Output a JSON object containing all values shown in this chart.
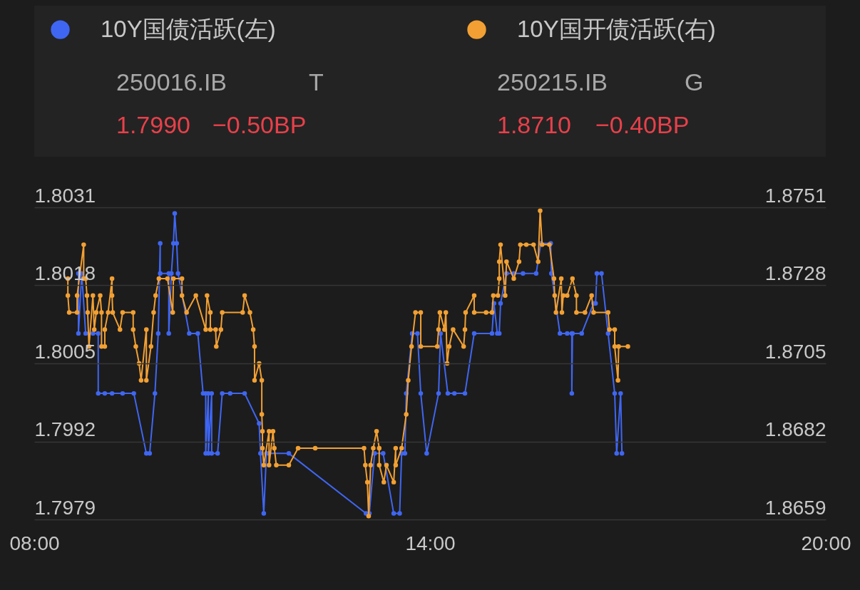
{
  "chart_data": {
    "type": "line",
    "legend": "top",
    "grid": "y",
    "marker": "circle",
    "line_style": "solid",
    "xlim": [
      8,
      20
    ],
    "xticks": [
      {
        "value": 8,
        "label": "08:00"
      },
      {
        "value": 14,
        "label": "14:00"
      },
      {
        "value": 20,
        "label": "20:00"
      }
    ],
    "ylim": [
      1.7979,
      1.8031
    ],
    "yticks": [
      1.7979,
      1.7992,
      1.8005,
      1.8018,
      1.8031
    ],
    "y2lim": [
      1.8659,
      1.8751
    ],
    "y2ticks": [
      1.8659,
      1.8682,
      1.8705,
      1.8728,
      1.8751
    ],
    "annotations": [
      "250016.IB",
      "T",
      "1.7990",
      "−0.50BP",
      "250215.IB",
      "G",
      "1.8710",
      "−0.40BP"
    ],
    "series": [
      {
        "name": "10Y国债活跃(左)",
        "color": "#3f66f2",
        "x": [
          8.67,
          8.67,
          8.72,
          8.78,
          8.89,
          8.97,
          8.97,
          9.07,
          9.18,
          9.34,
          9.51,
          9.7,
          9.75,
          9.83,
          9.88,
          9.91,
          9.91,
          10.04,
          10.04,
          10.08,
          10.11,
          10.13,
          10.16,
          10.18,
          10.35,
          10.48,
          10.56,
          10.6,
          10.6,
          10.64,
          10.64,
          10.69,
          10.69,
          10.78,
          10.85,
          10.97,
          11.19,
          11.41,
          11.43,
          11.48,
          11.52,
          11.56,
          11.86,
          13.03,
          13.08,
          13.16,
          13.29,
          13.45,
          13.54,
          13.57,
          13.62,
          13.64,
          13.73,
          13.81,
          13.86,
          13.95,
          14.13,
          14.16,
          14.27,
          14.37,
          14.53,
          14.67,
          14.94,
          14.97,
          15.02,
          15.05,
          15.07,
          15.16,
          15.27,
          15.41,
          15.61,
          15.68,
          15.83,
          15.84,
          15.97,
          16.08,
          16.15,
          16.15,
          16.16,
          16.3,
          16.48,
          16.51,
          16.53,
          16.6,
          16.7,
          16.8,
          16.83,
          16.89,
          16.91
        ],
        "values": [
          1.802,
          1.801,
          1.802,
          1.801,
          1.801,
          1.801,
          1.8,
          1.8,
          1.8,
          1.8,
          1.8,
          1.799,
          1.799,
          1.8,
          1.801,
          1.8025,
          1.802,
          1.802,
          1.801,
          1.802,
          1.8025,
          1.803,
          1.8025,
          1.802,
          1.801,
          1.801,
          1.8,
          1.8,
          1.799,
          1.8,
          1.799,
          1.8,
          1.799,
          1.799,
          1.8,
          1.8,
          1.8,
          1.7995,
          1.799,
          1.798,
          1.799,
          1.799,
          1.799,
          1.798,
          1.798,
          1.799,
          1.799,
          1.798,
          1.798,
          1.799,
          1.799,
          1.8,
          1.801,
          1.801,
          1.8,
          1.799,
          1.8,
          1.801,
          1.8,
          1.8,
          1.8,
          1.801,
          1.801,
          1.8015,
          1.801,
          1.801,
          1.8015,
          1.802,
          1.802,
          1.802,
          1.802,
          1.8025,
          1.8025,
          1.802,
          1.801,
          1.801,
          1.801,
          1.8,
          1.801,
          1.801,
          1.8015,
          1.8015,
          1.802,
          1.802,
          1.801,
          1.8,
          1.799,
          1.8,
          1.799
        ]
      },
      {
        "name": "10Y国开债活跃(右)",
        "color": "#f2a033",
        "axis": "y2",
        "x": [
          8.51,
          8.51,
          8.53,
          8.65,
          8.65,
          8.75,
          8.75,
          8.78,
          8.8,
          8.81,
          8.83,
          8.89,
          8.91,
          8.94,
          9.0,
          9.02,
          9.02,
          9.07,
          9.07,
          9.12,
          9.18,
          9.18,
          9.19,
          9.3,
          9.34,
          9.5,
          9.5,
          9.54,
          9.59,
          9.62,
          9.7,
          9.7,
          9.77,
          9.81,
          9.84,
          9.89,
          10.02,
          10.1,
          10.11,
          10.24,
          10.24,
          10.31,
          10.45,
          10.6,
          10.62,
          10.67,
          10.67,
          10.75,
          10.76,
          10.83,
          10.85,
          11.16,
          11.19,
          11.27,
          11.32,
          11.34,
          11.34,
          11.41,
          11.45,
          11.45,
          11.46,
          11.46,
          11.48,
          11.56,
          11.56,
          11.62,
          11.64,
          11.67,
          11.86,
          12.0,
          12.26,
          13.0,
          13.02,
          13.05,
          13.07,
          13.1,
          13.14,
          13.19,
          13.23,
          13.23,
          13.3,
          13.34,
          13.45,
          13.48,
          13.48,
          13.57,
          13.64,
          13.67,
          13.72,
          13.78,
          13.86,
          13.86,
          14.11,
          14.13,
          14.15,
          14.22,
          14.24,
          14.26,
          14.29,
          14.35,
          14.51,
          14.53,
          14.54,
          14.67,
          14.67,
          14.85,
          14.94,
          14.96,
          15.03,
          15.05,
          15.05,
          15.07,
          15.14,
          15.16,
          15.27,
          15.35,
          15.37,
          15.46,
          15.57,
          15.64,
          15.67,
          15.7,
          15.81,
          15.88,
          15.89,
          15.91,
          15.99,
          16.0,
          16.02,
          16.08,
          16.16,
          16.22,
          16.22,
          16.35,
          16.45,
          16.48,
          16.7,
          16.72,
          16.8,
          16.8,
          16.85,
          16.86,
          17.0
        ],
        "values": [
          1.873,
          1.8725,
          1.872,
          1.872,
          1.8725,
          1.874,
          1.873,
          1.873,
          1.8725,
          1.872,
          1.871,
          1.8725,
          1.8715,
          1.872,
          1.8725,
          1.872,
          1.871,
          1.871,
          1.8715,
          1.872,
          1.873,
          1.8725,
          1.872,
          1.8715,
          1.872,
          1.872,
          1.8715,
          1.871,
          1.8705,
          1.87,
          1.8715,
          1.87,
          1.871,
          1.872,
          1.8725,
          1.873,
          1.873,
          1.872,
          1.873,
          1.873,
          1.8725,
          1.872,
          1.8725,
          1.8715,
          1.8725,
          1.872,
          1.8715,
          1.8715,
          1.871,
          1.8715,
          1.872,
          1.872,
          1.8725,
          1.872,
          1.8715,
          1.871,
          1.87,
          1.8705,
          1.87,
          1.869,
          1.8685,
          1.868,
          1.8675,
          1.8685,
          1.8675,
          1.8685,
          1.868,
          1.8675,
          1.8675,
          1.868,
          1.868,
          1.868,
          1.8675,
          1.867,
          1.866,
          1.8675,
          1.868,
          1.8685,
          1.868,
          1.8675,
          1.867,
          1.8675,
          1.867,
          1.868,
          1.8675,
          1.868,
          1.869,
          1.87,
          1.871,
          1.872,
          1.872,
          1.871,
          1.871,
          1.8715,
          1.872,
          1.8715,
          1.872,
          1.8705,
          1.871,
          1.8715,
          1.871,
          1.8715,
          1.872,
          1.8725,
          1.872,
          1.872,
          1.872,
          1.8725,
          1.8725,
          1.873,
          1.8735,
          1.874,
          1.8725,
          1.8735,
          1.873,
          1.8735,
          1.874,
          1.874,
          1.874,
          1.8735,
          1.875,
          1.874,
          1.874,
          1.873,
          1.8725,
          1.872,
          1.873,
          1.872,
          1.8725,
          1.8725,
          1.873,
          1.8725,
          1.872,
          1.872,
          1.8725,
          1.872,
          1.872,
          1.8715,
          1.8715,
          1.871,
          1.87,
          1.871,
          1.871
        ]
      }
    ]
  }
}
